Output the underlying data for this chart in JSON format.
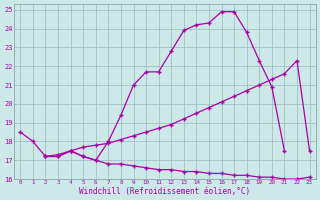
{
  "bg_color": "#cce8e8",
  "grid_color": "#99bbbb",
  "line_color": "#aa00aa",
  "xlabel": "Windchill (Refroidissement éolien,°C)",
  "xlim": [
    -0.5,
    23.5
  ],
  "ylim": [
    16,
    25.3
  ],
  "yticks": [
    16,
    17,
    18,
    19,
    20,
    21,
    22,
    23,
    24,
    25
  ],
  "xticks": [
    0,
    1,
    2,
    3,
    4,
    5,
    6,
    7,
    8,
    9,
    10,
    11,
    12,
    13,
    14,
    15,
    16,
    17,
    18,
    19,
    20,
    21,
    22,
    23
  ],
  "curve_upper_x": [
    0,
    1,
    2,
    3,
    4,
    5,
    6,
    7,
    8,
    9,
    10,
    11,
    12,
    13,
    14,
    15,
    16,
    17,
    18,
    19,
    20,
    21
  ],
  "curve_upper_y": [
    18.5,
    18.0,
    17.2,
    17.2,
    17.5,
    17.2,
    17.0,
    18.0,
    19.4,
    21.0,
    21.7,
    21.7,
    22.8,
    23.9,
    24.2,
    24.3,
    24.9,
    24.9,
    23.8,
    22.3,
    20.9,
    17.5
  ],
  "curve_diag_x": [
    2,
    3,
    4,
    5,
    6,
    7,
    8,
    9,
    10,
    11,
    12,
    13,
    14,
    15,
    16,
    17,
    18,
    19,
    20,
    21,
    22,
    23
  ],
  "curve_diag_y": [
    17.2,
    17.3,
    17.5,
    17.7,
    17.8,
    17.9,
    18.1,
    18.3,
    18.5,
    18.7,
    18.9,
    19.2,
    19.5,
    19.8,
    20.1,
    20.4,
    20.7,
    21.0,
    21.3,
    21.6,
    22.3,
    17.5
  ],
  "curve_flat_x": [
    2,
    3,
    4,
    5,
    6,
    7,
    8,
    9,
    10,
    11,
    12,
    13,
    14,
    15,
    16,
    17,
    18,
    19,
    20,
    21,
    22,
    23
  ],
  "curve_flat_y": [
    17.2,
    17.2,
    17.5,
    17.2,
    17.0,
    16.8,
    16.8,
    16.7,
    16.6,
    16.5,
    16.5,
    16.4,
    16.4,
    16.3,
    16.3,
    16.2,
    16.2,
    16.1,
    16.1,
    16.0,
    16.0,
    16.1
  ]
}
